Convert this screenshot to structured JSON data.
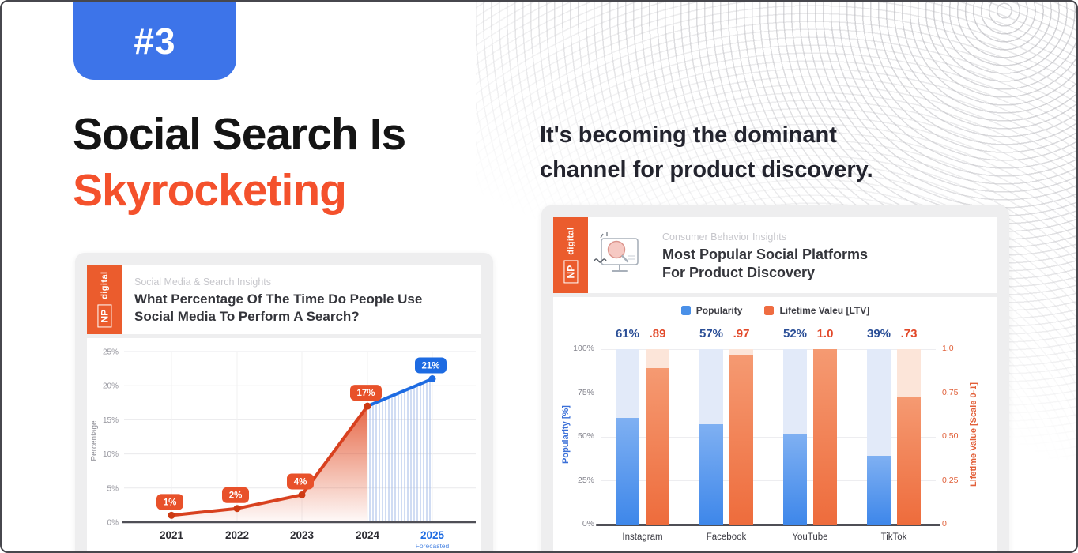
{
  "slide": {
    "badge": "#3",
    "title_black": "Social Search Is",
    "title_orange": "Skyrocketing",
    "subtitle": [
      "It's becoming the dominant",
      "channel for product discovery."
    ]
  },
  "brand": {
    "np": "NP",
    "digital": "digital"
  },
  "left_card": {
    "eyebrow": "Social Media & Search Insights",
    "title_line1": "What Percentage Of The Time Do People Use",
    "title_line2": "Social Media To Perform A Search?"
  },
  "right_card": {
    "eyebrow": "Consumer Behavior Insights",
    "title_line1": "Most Popular Social Platforms",
    "title_line2": "For Product Discovery"
  },
  "colors": {
    "badge_blue": "#3d74e9",
    "headline_orange": "#f4512c",
    "np_orange": "#eb5c2d",
    "line_actual": "#d8411f",
    "line_forecast": "#1d6be2",
    "chip_orange": "#e8512a",
    "chip_blue": "#1d6be2",
    "point_orange": "#cd3a13",
    "area_orange": "#e24d26",
    "hatch_blue": "#a9bfe9",
    "bar_blue_top": "#7fb0f2",
    "bar_blue_bottom": "#3e87ea",
    "bar_orange_top": "#f59a72",
    "bar_orange_bottom": "#ee6c3c",
    "ghost_blue": "#e2eaf9",
    "ghost_orange": "#fce5d9",
    "value_blue": "#2b4f97",
    "value_orange": "#e2492a",
    "axis_dark": "#4f4f56"
  },
  "chart_data": [
    {
      "type": "line",
      "title": "What Percentage Of The Time Do People Use Social Media To Perform A Search?",
      "x": [
        "2021",
        "2022",
        "2023",
        "2024",
        "2025"
      ],
      "values": [
        1,
        2,
        4,
        17,
        21
      ],
      "point_labels": [
        "1%",
        "2%",
        "4%",
        "17%",
        "21%"
      ],
      "ylabel": "Percentage",
      "yticks": [
        "0%",
        "5%",
        "10%",
        "15%",
        "20%",
        "25%"
      ],
      "ylim": [
        0,
        25
      ],
      "forecast_from_index": 3,
      "forecast_note": "Forecasted",
      "grid": "on",
      "annotation": "2021-2024 actual in orange, 2024-2025 forecast in blue with hatched area"
    },
    {
      "type": "bar",
      "title": "Most Popular Social Platforms For Product Discovery",
      "categories": [
        "Instagram",
        "Facebook",
        "YouTube",
        "TikTok"
      ],
      "series": [
        {
          "name": "Popularity",
          "axis": "left",
          "values": [
            61,
            57,
            52,
            39
          ],
          "labels": [
            "61%",
            "57%",
            "52%",
            "39%"
          ]
        },
        {
          "name": "Lifetime Valeu [LTV]",
          "axis": "right",
          "values": [
            0.89,
            0.97,
            1.0,
            0.73
          ],
          "labels": [
            ".89",
            ".97",
            "1.0",
            ".73"
          ]
        }
      ],
      "left_axis": {
        "label": "Popularity [%]",
        "ticks": [
          "0%",
          "25%",
          "50%",
          "75%",
          "100%"
        ],
        "lim": [
          0,
          100
        ]
      },
      "right_axis": {
        "label": "Lifetime Value [Scale 0-1]",
        "ticks": [
          "0",
          "0.25",
          "0.50",
          "0.75",
          "1.0"
        ],
        "lim": [
          0,
          1
        ]
      },
      "legend_position": "top",
      "grid": "on"
    }
  ]
}
